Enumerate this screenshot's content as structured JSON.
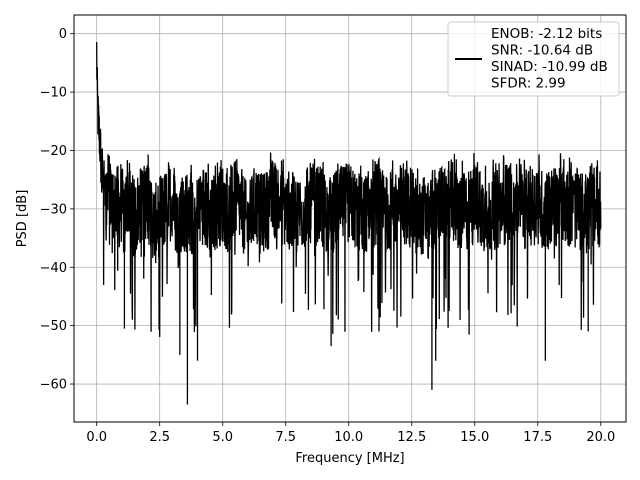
{
  "chart_data": {
    "type": "line",
    "title": "",
    "xlabel": "Frequency [MHz]",
    "ylabel": "PSD [dB]",
    "xlim": [
      -0.9,
      21.0
    ],
    "ylim": [
      -66.5,
      3.2
    ],
    "xticks": [
      0.0,
      2.5,
      5.0,
      7.5,
      10.0,
      12.5,
      15.0,
      17.5,
      20.0
    ],
    "xtick_labels": [
      "0.0",
      "2.5",
      "5.0",
      "7.5",
      "10.0",
      "12.5",
      "15.0",
      "17.5",
      "20.0"
    ],
    "yticks": [
      0,
      -10,
      -20,
      -30,
      -40,
      -50,
      -60
    ],
    "ytick_labels": [
      "0",
      "−10",
      "−20",
      "−30",
      "−40",
      "−50",
      "−60"
    ],
    "grid": true,
    "legend": {
      "position": "top-right",
      "entries": [
        "ENOB: -2.12 bits",
        "SNR: -10.64 dB",
        "SINAD: -10.99 dB",
        "SFDR: 2.99"
      ]
    },
    "line_color": "#000000",
    "series": [
      {
        "x": [
          0.0,
          0.02,
          0.05,
          0.1,
          0.15,
          0.2,
          0.25,
          0.3,
          0.4,
          0.5,
          0.6,
          0.75,
          0.9,
          1.0,
          1.1,
          1.2,
          1.35,
          1.5,
          1.75,
          2.0,
          2.3,
          2.5,
          2.75,
          3.0,
          3.25,
          3.3,
          3.5,
          3.6,
          3.75,
          3.9,
          4.0,
          4.25,
          4.5,
          4.75,
          5.0,
          5.25,
          5.5,
          5.75,
          6.0,
          6.3,
          6.5,
          6.8,
          7.0,
          7.5,
          8.0,
          8.5,
          9.0,
          9.3,
          9.5,
          10.0,
          10.5,
          11.0,
          11.2,
          11.5,
          12.0,
          12.5,
          12.8,
          13.0,
          13.2,
          13.3,
          13.4,
          13.5,
          13.8,
          14.0,
          14.4,
          14.8,
          15.0,
          15.5,
          16.0,
          16.5,
          17.0,
          17.5,
          17.8,
          18.0,
          18.5,
          19.0,
          19.5,
          19.8,
          20.0
        ],
        "values": [
          -3.0,
          -10.0,
          -14.0,
          -17.0,
          -20.0,
          -25.0,
          -22.0,
          -27.0,
          -29.0,
          -25.0,
          -31.0,
          -28.0,
          -30.0,
          -29.0,
          -33.0,
          -27.0,
          -30.0,
          -32.0,
          -29.0,
          -28.0,
          -33.0,
          -31.0,
          -30.0,
          -28.0,
          -34.0,
          -30.0,
          -33.0,
          -29.0,
          -31.0,
          -35.0,
          -30.0,
          -29.0,
          -32.0,
          -30.0,
          -29.0,
          -31.0,
          -28.0,
          -30.0,
          -33.0,
          -29.0,
          -31.0,
          -30.0,
          -28.0,
          -30.0,
          -31.0,
          -29.0,
          -30.0,
          -32.0,
          -30.0,
          -29.0,
          -31.0,
          -30.0,
          -28.0,
          -31.0,
          -29.0,
          -30.0,
          -32.0,
          -31.0,
          -33.0,
          -30.0,
          -31.0,
          -29.0,
          -30.0,
          -28.0,
          -31.0,
          -30.0,
          -29.0,
          -31.0,
          -30.0,
          -28.0,
          -30.0,
          -29.0,
          -31.0,
          -30.0,
          -29.0,
          -30.0,
          -31.0,
          -29.0,
          -30.0
        ]
      }
    ]
  }
}
